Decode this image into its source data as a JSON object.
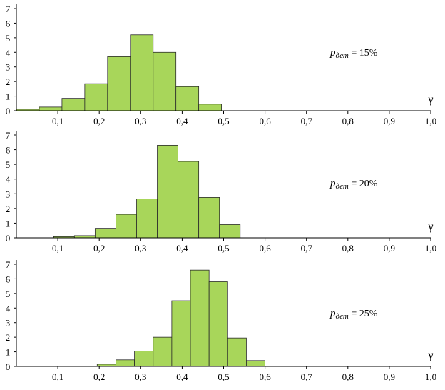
{
  "chart_data": [
    {
      "type": "bar",
      "title": "",
      "xlabel": "γ",
      "ylabel": "",
      "annotation": {
        "prefix": "p",
        "subscript": "дет",
        "text": " = 15%"
      },
      "xlim": [
        0,
        1.0
      ],
      "ylim": [
        0,
        7
      ],
      "x_ticks": [
        "0,1",
        "0,2",
        "0,3",
        "0,4",
        "0,5",
        "0,6",
        "0,7",
        "0,8",
        "0,9",
        "1,0"
      ],
      "y_ticks": [
        "0",
        "1",
        "2",
        "3",
        "4",
        "5",
        "6",
        "7"
      ],
      "bin_width": 0.055,
      "bins": [
        {
          "x": 0.0,
          "value": 0.1
        },
        {
          "x": 0.055,
          "value": 0.25
        },
        {
          "x": 0.11,
          "value": 0.85
        },
        {
          "x": 0.165,
          "value": 1.85
        },
        {
          "x": 0.22,
          "value": 3.7
        },
        {
          "x": 0.275,
          "value": 5.2
        },
        {
          "x": 0.33,
          "value": 4.0
        },
        {
          "x": 0.385,
          "value": 1.65
        },
        {
          "x": 0.44,
          "value": 0.45
        }
      ],
      "bar_color": "#a8d65a",
      "grid": false
    },
    {
      "type": "bar",
      "title": "",
      "xlabel": "γ",
      "ylabel": "",
      "annotation": {
        "prefix": "p",
        "subscript": "дет",
        "text": " = 20%"
      },
      "xlim": [
        0,
        1.0
      ],
      "ylim": [
        0,
        7
      ],
      "x_ticks": [
        "0,1",
        "0,2",
        "0,3",
        "0,4",
        "0,5",
        "0,6",
        "0,7",
        "0,8",
        "0,9",
        "1,0"
      ],
      "y_ticks": [
        "0",
        "1",
        "2",
        "3",
        "4",
        "5",
        "6",
        "7"
      ],
      "bin_width": 0.05,
      "bins": [
        {
          "x": 0.09,
          "value": 0.08
        },
        {
          "x": 0.14,
          "value": 0.15
        },
        {
          "x": 0.19,
          "value": 0.65
        },
        {
          "x": 0.24,
          "value": 1.6
        },
        {
          "x": 0.29,
          "value": 2.65
        },
        {
          "x": 0.34,
          "value": 6.3
        },
        {
          "x": 0.39,
          "value": 5.2
        },
        {
          "x": 0.44,
          "value": 2.75
        },
        {
          "x": 0.49,
          "value": 0.9
        }
      ],
      "bar_color": "#a8d65a",
      "grid": false
    },
    {
      "type": "bar",
      "title": "",
      "xlabel": "γ",
      "ylabel": "",
      "annotation": {
        "prefix": "p",
        "subscript": "дет",
        "text": " = 25%"
      },
      "xlim": [
        0,
        1.0
      ],
      "ylim": [
        0,
        7
      ],
      "x_ticks": [
        "0,1",
        "0,2",
        "0,3",
        "0,4",
        "0,5",
        "0,6",
        "0,7",
        "0,8",
        "0,9",
        "1,0"
      ],
      "y_ticks": [
        "0",
        "1",
        "2",
        "3",
        "4",
        "5",
        "6",
        "7"
      ],
      "bin_width": 0.045,
      "bins": [
        {
          "x": 0.195,
          "value": 0.15
        },
        {
          "x": 0.24,
          "value": 0.45
        },
        {
          "x": 0.285,
          "value": 1.05
        },
        {
          "x": 0.33,
          "value": 2.0
        },
        {
          "x": 0.375,
          "value": 4.5
        },
        {
          "x": 0.42,
          "value": 6.6
        },
        {
          "x": 0.465,
          "value": 5.8
        },
        {
          "x": 0.51,
          "value": 1.95
        },
        {
          "x": 0.555,
          "value": 0.4
        }
      ],
      "bar_color": "#a8d65a",
      "grid": false
    }
  ]
}
